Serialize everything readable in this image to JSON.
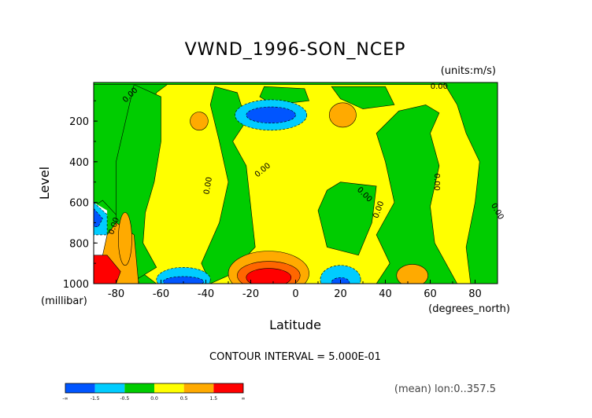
{
  "chart_data": {
    "type": "heatmap",
    "title": "VWND_1996-SON_NCEP",
    "units": "(units:m/s)",
    "xlabel": "Latitude",
    "x_unit": "(degrees_north)",
    "ylabel": "Level",
    "y_unit": "(millibar)",
    "x_ticks": [
      "-80",
      "-60",
      "-40",
      "-20",
      "0",
      "20",
      "40",
      "60",
      "80"
    ],
    "y_ticks": [
      "200",
      "400",
      "600",
      "800",
      "1000"
    ],
    "xlim": [
      -90,
      90
    ],
    "ylim": [
      1000,
      10
    ],
    "contour_interval_label": "CONTOUR INTERVAL = 5.000E-01",
    "footnote": "(mean) lon:0..357.5",
    "contour_labels": [
      "0.00",
      "0.00",
      "0.00",
      "0.00",
      "0.00",
      "0.00",
      "0.00",
      "0.00",
      "0.00"
    ],
    "colorbar": {
      "ticks": [
        "-∞",
        "-1.5",
        "-0.5",
        "0.0",
        "0.5",
        "1.5",
        "∞"
      ],
      "colors": [
        "#0055ff",
        "#00ccff",
        "#00cc00",
        "#ffff00",
        "#ffaa00",
        "#ff0000"
      ]
    },
    "features": [
      {
        "level": "negative",
        "lat": -12,
        "p": 180,
        "min": -1.5
      },
      {
        "level": "positive",
        "lat": -12,
        "p": 950,
        "max": 1.5
      },
      {
        "level": "positive",
        "lat": -85,
        "p": 950,
        "max": 1.5
      },
      {
        "level": "negative",
        "lat": -50,
        "p": 980,
        "min": -1.5
      },
      {
        "level": "negative",
        "lat": 20,
        "p": 980,
        "min": -1.0
      },
      {
        "level": "positive",
        "lat": 50,
        "p": 960,
        "max": 0.75
      },
      {
        "level": "positive",
        "lat": 20,
        "p": 170,
        "max": 0.75
      }
    ]
  }
}
